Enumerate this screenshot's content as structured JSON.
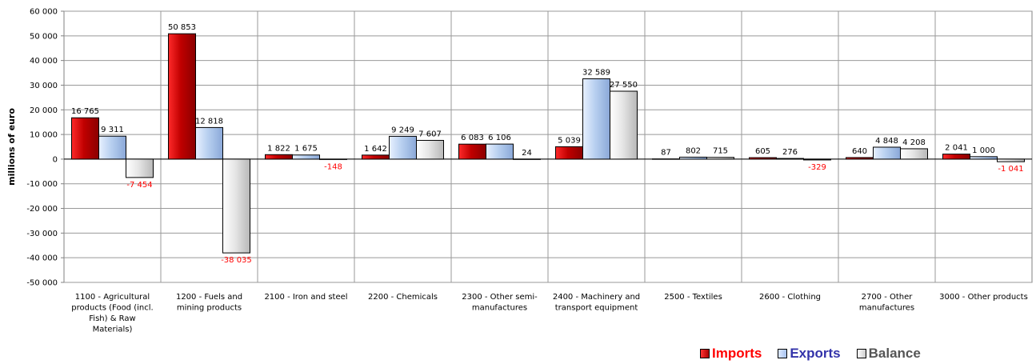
{
  "chart_data": {
    "type": "bar",
    "ylabel": "millions of euro",
    "ylim": [
      -50000,
      60000
    ],
    "yticks": [
      60000,
      50000,
      40000,
      30000,
      20000,
      10000,
      0,
      -10000,
      -20000,
      -30000,
      -40000,
      -50000
    ],
    "ytick_labels": [
      "60 000",
      "50 000",
      "40 000",
      "30 000",
      "20 000",
      "10 000",
      "0",
      "-10 000",
      "-20 000",
      "-30 000",
      "-40 000",
      "-50 000"
    ],
    "grid": true,
    "legend_position": "bottom-right",
    "categories": [
      [
        "1100 - Agricultural",
        "products (Food (incl.",
        "Fish) & Raw",
        "Materials)"
      ],
      [
        "1200 - Fuels and",
        "mining products"
      ],
      [
        "2100 - Iron and steel"
      ],
      [
        "2200 - Chemicals"
      ],
      [
        "2300 - Other semi-",
        "manufactures"
      ],
      [
        "2400 - Machinery and",
        "transport equipment"
      ],
      [
        "2500 - Textiles"
      ],
      [
        "2600 - Clothing"
      ],
      [
        "2700 - Other",
        "manufactures"
      ],
      [
        "3000 - Other products"
      ]
    ],
    "series": [
      {
        "name": "Imports",
        "color": "#cc0000",
        "legend_color": "#ff0000",
        "values": [
          16765,
          50853,
          1822,
          1642,
          6083,
          5039,
          87,
          605,
          640,
          2041
        ],
        "labels": [
          "16 765",
          "50 853",
          "1 822",
          "1 642",
          "6 083",
          "5 039",
          "87",
          "605",
          "640",
          "2 041"
        ]
      },
      {
        "name": "Exports",
        "color": "#b8d0f0",
        "legend_color": "#3333aa",
        "values": [
          9311,
          12818,
          1675,
          9249,
          6106,
          32589,
          802,
          276,
          4848,
          1000
        ],
        "labels": [
          "9 311",
          "12 818",
          "1 675",
          "9 249",
          "6 106",
          "32 589",
          "802",
          "276",
          "4 848",
          "1 000"
        ]
      },
      {
        "name": "Balance",
        "color": "#e4e4e4",
        "legend_color": "#555555",
        "values": [
          -7454,
          -38035,
          -148,
          7607,
          24,
          27550,
          715,
          -329,
          4208,
          -1041
        ],
        "labels": [
          "-7 454",
          "-38 035",
          "-148",
          "7 607",
          "24",
          "27 550",
          "715",
          "-329",
          "4 208",
          "-1 041"
        ]
      }
    ],
    "negative_label_color": "#ff0000"
  },
  "legend": {
    "imports": "Imports",
    "exports": "Exports",
    "balance": "Balance"
  }
}
